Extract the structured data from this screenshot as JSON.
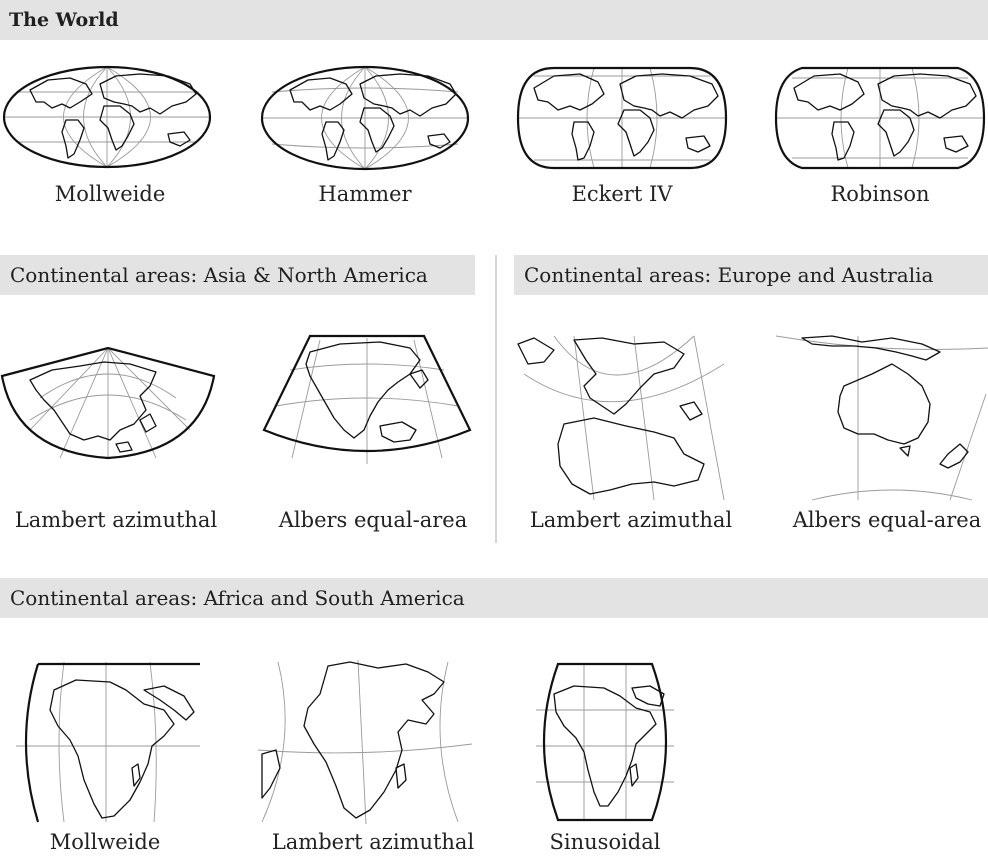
{
  "sections": {
    "world": {
      "title": "The World"
    },
    "asia_na": {
      "title": "Continental areas: Asia & North America"
    },
    "europe_aus": {
      "title": "Continental areas: Europe and Australia"
    },
    "africa_sa": {
      "title": "Continental areas: Africa and South America"
    }
  },
  "world_maps": [
    "Mollweide",
    "Hammer",
    "Eckert IV",
    "Robinson"
  ],
  "asia_na_maps": [
    "Lambert azimuthal",
    "Albers equal-area"
  ],
  "europe_aus_maps": [
    "Lambert azimuthal",
    "Albers equal-area"
  ],
  "africa_sa_maps": [
    "Mollweide",
    "Lambert azimuthal",
    "Sinusoidal"
  ]
}
